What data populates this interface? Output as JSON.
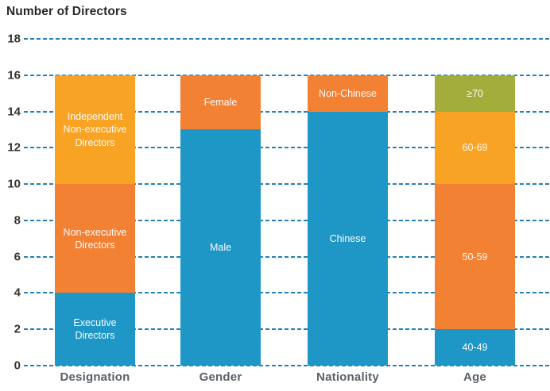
{
  "chart_data": {
    "type": "bar",
    "stacked": true,
    "title": "Number of Directors",
    "xlabel": "",
    "ylabel": "Number of Directors",
    "ylim": [
      0,
      18
    ],
    "ytick_step": 2,
    "ytick_labels": [
      "0",
      "2",
      "4",
      "6",
      "8",
      "10",
      "12",
      "14",
      "16",
      "18"
    ],
    "grid": "horizontal-dashed",
    "legend": "none (segments labeled inline)",
    "categories": [
      "Designation",
      "Gender",
      "Nationality",
      "Age"
    ],
    "bars": [
      {
        "category": "Designation",
        "total": 16,
        "segments": [
          {
            "label": "Executive Directors",
            "value": 4,
            "color": "blue"
          },
          {
            "label": "Non-executive Directors",
            "value": 6,
            "color": "orange"
          },
          {
            "label": "Independent Non-executive Directors",
            "value": 6,
            "color": "amber"
          }
        ]
      },
      {
        "category": "Gender",
        "total": 16,
        "segments": [
          {
            "label": "Male",
            "value": 13,
            "color": "blue"
          },
          {
            "label": "Female",
            "value": 3,
            "color": "orange"
          }
        ]
      },
      {
        "category": "Nationality",
        "total": 16,
        "segments": [
          {
            "label": "Chinese",
            "value": 14,
            "color": "blue"
          },
          {
            "label": "Non-Chinese",
            "value": 2,
            "color": "orange"
          }
        ]
      },
      {
        "category": "Age",
        "total": 16,
        "segments": [
          {
            "label": "40-49",
            "value": 2,
            "color": "blue"
          },
          {
            "label": "50-59",
            "value": 8,
            "color": "orange"
          },
          {
            "label": "60-69",
            "value": 4,
            "color": "amber"
          },
          {
            "label": "≥70",
            "value": 2,
            "color": "olive"
          }
        ]
      }
    ],
    "colors": {
      "blue": "#1e97c7",
      "orange": "#f28134",
      "amber": "#f9a324",
      "olive": "#a3ad3c",
      "grid": "#2380b8",
      "title_text": "#2b2a28",
      "ytick_text": "#37332e",
      "category_text": "#5a6169",
      "segment_text": "#ffffff"
    }
  }
}
